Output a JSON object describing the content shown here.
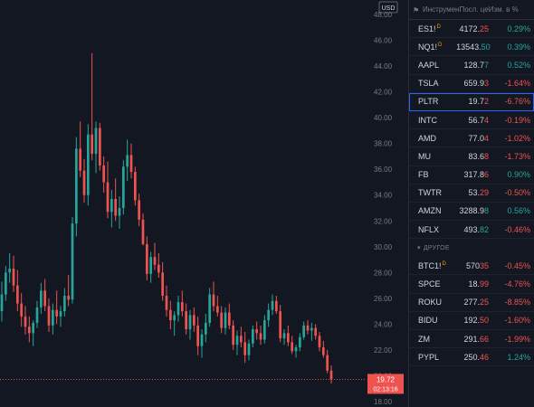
{
  "chart": {
    "currency": "USD",
    "y_ticks": [
      "48.00",
      "46.00",
      "44.00",
      "42.00",
      "40.00",
      "38.00",
      "36.00",
      "34.00",
      "32.00",
      "30.00",
      "28.00",
      "26.00",
      "24.00",
      "22.00",
      "20.00",
      "18.00"
    ],
    "price_tag": "19.72",
    "countdown": "02:13:16",
    "colors": {
      "up": "#26a69a",
      "down": "#ef5350",
      "background": "#131722",
      "text": "#787b86"
    }
  },
  "chart_data": {
    "type": "candlestick",
    "ylim": [
      17.5,
      49
    ],
    "candles": [
      [
        25.0,
        27.3,
        24.2,
        26.3
      ],
      [
        26.3,
        28.5,
        25.8,
        28.0
      ],
      [
        28.0,
        29.5,
        27.2,
        28.3
      ],
      [
        28.3,
        29.3,
        26.5,
        27.0
      ],
      [
        27.0,
        28.2,
        25.0,
        25.6
      ],
      [
        25.6,
        26.4,
        23.8,
        24.6
      ],
      [
        24.6,
        25.4,
        23.2,
        23.8
      ],
      [
        23.8,
        24.6,
        22.6,
        23.3
      ],
      [
        23.3,
        24.3,
        22.3,
        24.1
      ],
      [
        24.1,
        25.8,
        23.7,
        25.3
      ],
      [
        25.3,
        27.2,
        24.8,
        26.6
      ],
      [
        26.6,
        27.5,
        25.0,
        25.4
      ],
      [
        25.4,
        26.0,
        23.4,
        23.9
      ],
      [
        23.9,
        25.6,
        23.2,
        25.1
      ],
      [
        25.1,
        26.6,
        24.0,
        24.6
      ],
      [
        24.6,
        25.4,
        23.8,
        25.0
      ],
      [
        25.0,
        26.8,
        24.6,
        26.2
      ],
      [
        26.2,
        27.8,
        25.4,
        25.9
      ],
      [
        25.9,
        32.3,
        25.6,
        31.8
      ],
      [
        31.8,
        38.5,
        30.8,
        37.6
      ],
      [
        37.6,
        39.7,
        35.4,
        35.9
      ],
      [
        35.9,
        36.8,
        33.4,
        34.0
      ],
      [
        34.0,
        39.5,
        33.2,
        38.7
      ],
      [
        38.7,
        45.0,
        36.7,
        37.2
      ],
      [
        37.2,
        39.7,
        35.7,
        39.2
      ],
      [
        39.2,
        39.6,
        35.9,
        36.3
      ],
      [
        36.3,
        37.0,
        34.2,
        35.0
      ],
      [
        35.0,
        36.6,
        32.2,
        32.7
      ],
      [
        32.7,
        34.4,
        31.5,
        33.7
      ],
      [
        33.7,
        35.3,
        32.0,
        32.4
      ],
      [
        32.4,
        33.9,
        31.4,
        33.0
      ],
      [
        33.0,
        36.7,
        32.5,
        36.2
      ],
      [
        36.2,
        38.3,
        35.1,
        37.1
      ],
      [
        37.1,
        38.0,
        35.3,
        35.8
      ],
      [
        35.8,
        36.2,
        33.2,
        33.6
      ],
      [
        33.6,
        34.1,
        31.6,
        32.1
      ],
      [
        32.1,
        32.6,
        30.1,
        30.2
      ],
      [
        30.2,
        30.8,
        27.4,
        27.9
      ],
      [
        27.9,
        29.6,
        27.2,
        29.2
      ],
      [
        29.2,
        30.3,
        28.2,
        28.6
      ],
      [
        28.6,
        29.5,
        27.6,
        28.0
      ],
      [
        28.0,
        28.8,
        25.8,
        26.2
      ],
      [
        26.2,
        27.0,
        24.6,
        25.1
      ],
      [
        25.1,
        25.8,
        23.6,
        24.3
      ],
      [
        24.3,
        25.0,
        23.1,
        24.7
      ],
      [
        24.7,
        26.2,
        24.2,
        25.7
      ],
      [
        25.7,
        26.6,
        24.6,
        25.0
      ],
      [
        25.0,
        25.6,
        23.2,
        23.6
      ],
      [
        23.6,
        25.1,
        22.8,
        24.7
      ],
      [
        24.7,
        25.3,
        23.4,
        23.9
      ],
      [
        23.9,
        24.6,
        21.6,
        22.3
      ],
      [
        22.3,
        23.6,
        21.4,
        23.2
      ],
      [
        23.2,
        24.8,
        22.6,
        24.1
      ],
      [
        24.1,
        26.8,
        23.8,
        26.3
      ],
      [
        26.3,
        27.3,
        25.0,
        25.4
      ],
      [
        25.4,
        26.2,
        24.6,
        24.9
      ],
      [
        24.9,
        25.4,
        23.3,
        23.7
      ],
      [
        23.7,
        25.3,
        23.2,
        24.9
      ],
      [
        24.9,
        25.6,
        23.6,
        23.9
      ],
      [
        23.9,
        24.3,
        22.0,
        22.4
      ],
      [
        22.4,
        23.5,
        21.6,
        23.1
      ],
      [
        23.1,
        23.8,
        22.2,
        22.6
      ],
      [
        22.6,
        23.4,
        21.0,
        21.6
      ],
      [
        21.6,
        22.8,
        21.2,
        22.5
      ],
      [
        22.5,
        23.9,
        22.2,
        23.6
      ],
      [
        23.6,
        24.2,
        22.8,
        23.3
      ],
      [
        23.3,
        23.9,
        22.4,
        22.8
      ],
      [
        22.8,
        24.7,
        22.5,
        24.3
      ],
      [
        24.3,
        25.6,
        23.8,
        25.1
      ],
      [
        25.1,
        26.3,
        24.7,
        25.8
      ],
      [
        25.8,
        26.2,
        24.8,
        25.0
      ],
      [
        25.0,
        25.5,
        22.6,
        22.9
      ],
      [
        22.9,
        23.6,
        22.4,
        23.3
      ],
      [
        23.3,
        23.9,
        22.3,
        22.6
      ],
      [
        22.6,
        23.1,
        21.7,
        21.9
      ],
      [
        21.9,
        22.4,
        21.4,
        22.2
      ],
      [
        22.2,
        23.3,
        21.9,
        23.0
      ],
      [
        23.0,
        24.2,
        22.8,
        23.9
      ],
      [
        23.9,
        24.3,
        23.2,
        23.5
      ],
      [
        23.5,
        24.1,
        22.7,
        23.7
      ],
      [
        23.7,
        24.0,
        22.8,
        23.1
      ],
      [
        23.1,
        23.4,
        21.9,
        22.2
      ],
      [
        22.2,
        22.7,
        21.4,
        21.6
      ],
      [
        21.6,
        22.0,
        20.2,
        20.4
      ],
      [
        20.4,
        20.8,
        19.4,
        19.72
      ]
    ]
  },
  "watchlist": {
    "header": {
      "col_symbol": "Инструмен",
      "col_last": "Посл. це",
      "col_change": "Изм. в %"
    },
    "items": [
      {
        "symbol": "ES1!",
        "badge": "D",
        "last_main": "4172.",
        "last_tail": "25",
        "tail_dir": "down",
        "change": "0.29%",
        "dir": "up"
      },
      {
        "symbol": "NQ1!",
        "badge": "D",
        "last_main": "13543.",
        "last_tail": "50",
        "tail_dir": "up",
        "change": "0.39%",
        "dir": "up"
      },
      {
        "symbol": "AAPL",
        "badge": "",
        "last_main": "128.7",
        "last_tail": "7",
        "tail_dir": "up",
        "change": "0.52%",
        "dir": "up"
      },
      {
        "symbol": "TSLA",
        "badge": "",
        "last_main": "659.9",
        "last_tail": "3",
        "tail_dir": "down",
        "change": "-1.64%",
        "dir": "down"
      },
      {
        "symbol": "PLTR",
        "badge": "",
        "last_main": "19.7",
        "last_tail": "2",
        "tail_dir": "down",
        "change": "-6.76%",
        "dir": "down",
        "selected": true
      },
      {
        "symbol": "INTC",
        "badge": "",
        "last_main": "56.7",
        "last_tail": "4",
        "tail_dir": "down",
        "change": "-0.19%",
        "dir": "down"
      },
      {
        "symbol": "AMD",
        "badge": "",
        "last_main": "77.0",
        "last_tail": "4",
        "tail_dir": "down",
        "change": "-1.02%",
        "dir": "down"
      },
      {
        "symbol": "MU",
        "badge": "",
        "last_main": "83.6",
        "last_tail": "8",
        "tail_dir": "down",
        "change": "-1.73%",
        "dir": "down"
      },
      {
        "symbol": "FB",
        "badge": "",
        "last_main": "317.8",
        "last_tail": "6",
        "tail_dir": "down",
        "change": "0.90%",
        "dir": "up"
      },
      {
        "symbol": "TWTR",
        "badge": "",
        "last_main": "53.",
        "last_tail": "29",
        "tail_dir": "down",
        "change": "-0.50%",
        "dir": "down"
      },
      {
        "symbol": "AMZN",
        "badge": "",
        "last_main": "3288.9",
        "last_tail": "8",
        "tail_dir": "up",
        "change": "0.56%",
        "dir": "up"
      },
      {
        "symbol": "NFLX",
        "badge": "",
        "last_main": "493.",
        "last_tail": "82",
        "tail_dir": "up",
        "change": "-0.46%",
        "dir": "down"
      }
    ],
    "section_label": "ДРУГОЕ",
    "other_items": [
      {
        "symbol": "BTC1!",
        "badge": "D",
        "last_main": "570",
        "last_tail": "35",
        "tail_dir": "down",
        "change": "-0.45%",
        "dir": "down"
      },
      {
        "symbol": "SPCE",
        "badge": "",
        "last_main": "18.",
        "last_tail": "99",
        "tail_dir": "down",
        "change": "-4.76%",
        "dir": "down"
      },
      {
        "symbol": "ROKU",
        "badge": "",
        "last_main": "277.",
        "last_tail": "25",
        "tail_dir": "down",
        "change": "-8.85%",
        "dir": "down"
      },
      {
        "symbol": "BIDU",
        "badge": "",
        "last_main": "192.",
        "last_tail": "50",
        "tail_dir": "down",
        "change": "-1.60%",
        "dir": "down"
      },
      {
        "symbol": "ZM",
        "badge": "",
        "last_main": "291.",
        "last_tail": "66",
        "tail_dir": "down",
        "change": "-1.99%",
        "dir": "down"
      },
      {
        "symbol": "PYPL",
        "badge": "",
        "last_main": "250.",
        "last_tail": "46",
        "tail_dir": "down",
        "change": "1.24%",
        "dir": "up"
      }
    ]
  }
}
